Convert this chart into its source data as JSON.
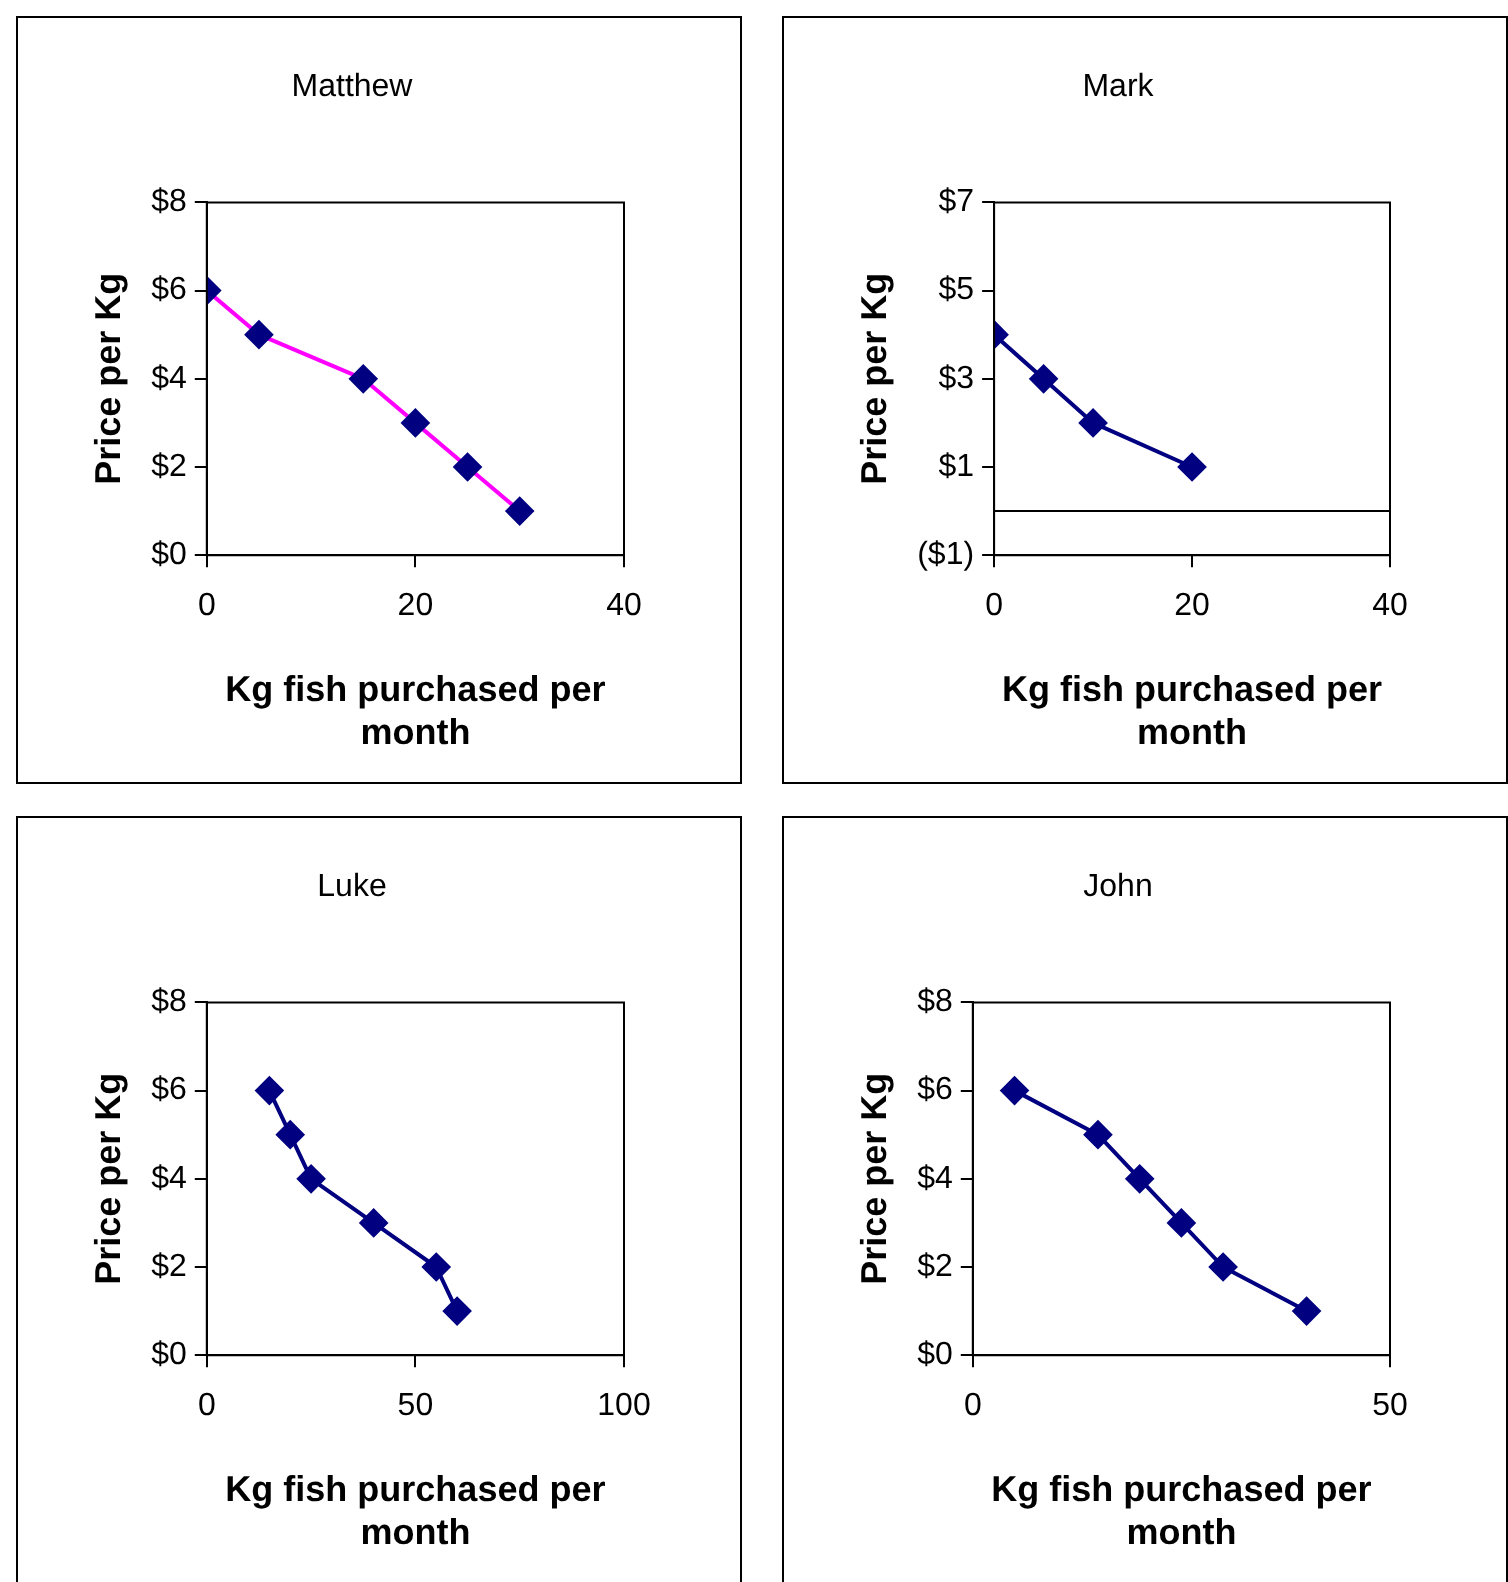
{
  "chart_data": [
    {
      "type": "line",
      "title": "Matthew",
      "xlabel": "Kg fish purchased per month",
      "ylabel": "Price per Kg",
      "marker": "diamond",
      "grid": false,
      "legend": false,
      "series": [
        {
          "color": "#ff00ff",
          "colors": [
            "#000080",
            "#000080",
            "#000080",
            "#000080",
            "#000080",
            "#000080"
          ],
          "x": [
            0,
            5,
            15,
            20,
            25,
            30
          ],
          "values": [
            6,
            5,
            4,
            3,
            2,
            1
          ]
        }
      ],
      "xlim": [
        0,
        40
      ],
      "xticks": [
        0,
        20,
        40
      ],
      "ylim": [
        0,
        8
      ],
      "yticks": [
        {
          "value": 0,
          "label": "$0"
        },
        {
          "value": 2,
          "label": "$2"
        },
        {
          "value": 4,
          "label": "$4"
        },
        {
          "value": 6,
          "label": "$6"
        },
        {
          "value": 8,
          "label": "$8"
        }
      ]
    },
    {
      "type": "line",
      "title": "Mark",
      "xlabel": "Kg fish purchased per month",
      "ylabel": "Price per Kg",
      "marker": "diamond",
      "grid": false,
      "legend": false,
      "series": [
        {
          "color": "#000080",
          "colors": [
            "#000080",
            "#000080",
            "#000080",
            "#000080"
          ],
          "x": [
            0,
            5,
            10,
            20
          ],
          "values": [
            4,
            3,
            2,
            1
          ]
        }
      ],
      "xlim": [
        0,
        40
      ],
      "xticks": [
        0,
        20,
        40
      ],
      "ylim": [
        -1,
        7
      ],
      "yticks": [
        {
          "value": -1,
          "label": "($1)"
        },
        {
          "value": 1,
          "label": "$1"
        },
        {
          "value": 3,
          "label": "$3"
        },
        {
          "value": 5,
          "label": "$5"
        },
        {
          "value": 7,
          "label": "$7"
        }
      ],
      "ref_lines": [
        {
          "axis": "y",
          "value": 0,
          "color": "#000000"
        }
      ]
    },
    {
      "type": "line",
      "title": "Luke",
      "xlabel": "Kg fish purchased per month",
      "ylabel": "Price per Kg",
      "marker": "diamond",
      "grid": false,
      "legend": false,
      "series": [
        {
          "color": "#000080",
          "colors": [
            "#000080",
            "#000080",
            "#000080",
            "#000080",
            "#000080",
            "#000080"
          ],
          "x": [
            15,
            20,
            25,
            40,
            55,
            60
          ],
          "values": [
            6,
            5,
            4,
            3,
            2,
            1
          ]
        }
      ],
      "xlim": [
        0,
        100
      ],
      "xticks": [
        0,
        50,
        100
      ],
      "ylim": [
        0,
        8
      ],
      "yticks": [
        {
          "value": 0,
          "label": "$0"
        },
        {
          "value": 2,
          "label": "$2"
        },
        {
          "value": 4,
          "label": "$4"
        },
        {
          "value": 6,
          "label": "$6"
        },
        {
          "value": 8,
          "label": "$8"
        }
      ]
    },
    {
      "type": "line",
      "title": "John",
      "xlabel": "Kg fish purchased per month",
      "ylabel": "Price per Kg",
      "marker": "diamond",
      "grid": false,
      "legend": false,
      "series": [
        {
          "color": "#000080",
          "colors": [
            "#000080",
            "#000080",
            "#000080",
            "#000080",
            "#000080",
            "#000080"
          ],
          "x": [
            5,
            15,
            20,
            25,
            30,
            40
          ],
          "values": [
            6,
            5,
            4,
            3,
            2,
            1
          ]
        }
      ],
      "xlim": [
        0,
        50
      ],
      "xticks": [
        0,
        50
      ],
      "ylim": [
        0,
        8
      ],
      "yticks": [
        {
          "value": 0,
          "label": "$0"
        },
        {
          "value": 2,
          "label": "$2"
        },
        {
          "value": 4,
          "label": "$4"
        },
        {
          "value": 6,
          "label": "$6"
        },
        {
          "value": 8,
          "label": "$8"
        }
      ]
    }
  ]
}
